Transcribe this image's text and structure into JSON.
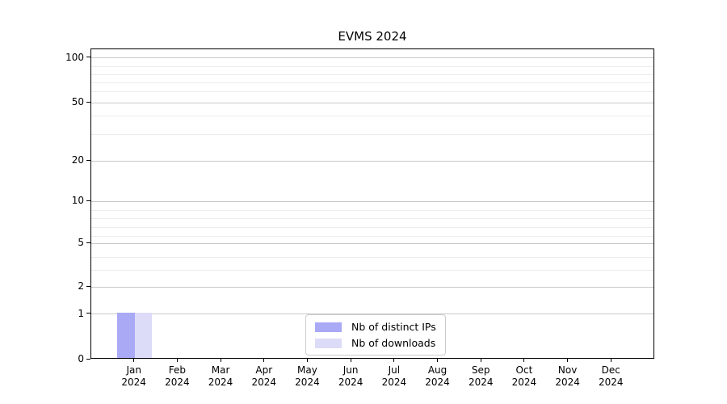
{
  "chart_data": {
    "type": "bar",
    "title": "EVMS 2024",
    "year_label": "2024",
    "categories": [
      "Jan",
      "Feb",
      "Mar",
      "Apr",
      "May",
      "Jun",
      "Jul",
      "Aug",
      "Sep",
      "Oct",
      "Nov",
      "Dec"
    ],
    "x_tick_labels_second_line": [
      "2024",
      "2024",
      "2024",
      "2024",
      "2024",
      "2024",
      "2024",
      "2024",
      "2024",
      "2024",
      "2024",
      "2024"
    ],
    "series": [
      {
        "name": "Nb of distinct IPs",
        "color": "#a9a9f6",
        "values": [
          1,
          0,
          0,
          0,
          0,
          0,
          0,
          0,
          0,
          0,
          0,
          0
        ]
      },
      {
        "name": "Nb of downloads",
        "color": "#dcdcf8",
        "values": [
          1,
          0,
          0,
          0,
          0,
          0,
          0,
          0,
          0,
          0,
          0,
          0
        ]
      }
    ],
    "xlabel": "",
    "ylabel": "",
    "y_ticks": [
      0,
      1,
      2,
      5,
      10,
      20,
      50,
      100
    ],
    "y_scale": "log-like (labeled ticks 0,1,2,5,10,20,50,100)",
    "ylim": [
      0,
      115
    ],
    "grid": "horizontal major and minor gridlines on",
    "legend_position": "lower center inside plot",
    "colors": {
      "axis": "#000000",
      "major_grid": "#c9c9c9",
      "minor_grid": "#ececec",
      "background": "#ffffff",
      "legend_border": "#cccccc"
    }
  }
}
